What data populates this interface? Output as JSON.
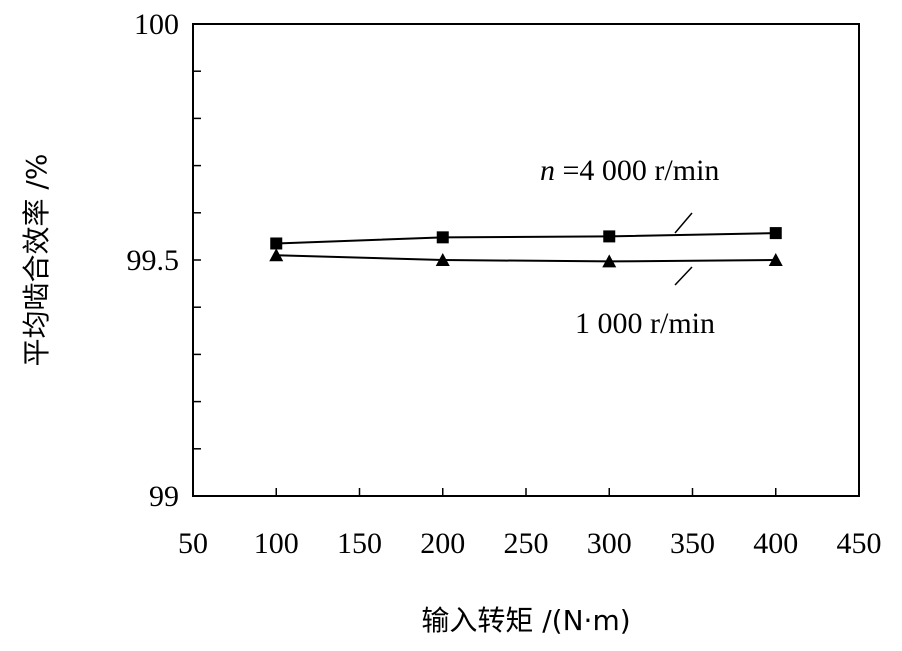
{
  "chart_data": {
    "type": "line",
    "title": "",
    "xlabel": "输入转矩 /(N·m)",
    "ylabel": "平均啮合效率 /%",
    "xlim": [
      50,
      450
    ],
    "ylim": [
      99,
      100
    ],
    "xticks": [
      "50",
      "100",
      "150",
      "200",
      "250",
      "300",
      "350",
      "400",
      "450"
    ],
    "yticks": [
      "99",
      "99.5",
      "100"
    ],
    "grid": false,
    "x": [
      100,
      200,
      300,
      400
    ],
    "series": [
      {
        "name": "n =4 000  r/min",
        "marker": "square",
        "values": [
          99.535,
          99.548,
          99.55,
          99.557
        ]
      },
      {
        "name": "1 000 r/min",
        "marker": "triangle",
        "values": [
          99.51,
          99.5,
          99.497,
          99.5
        ]
      }
    ]
  }
}
